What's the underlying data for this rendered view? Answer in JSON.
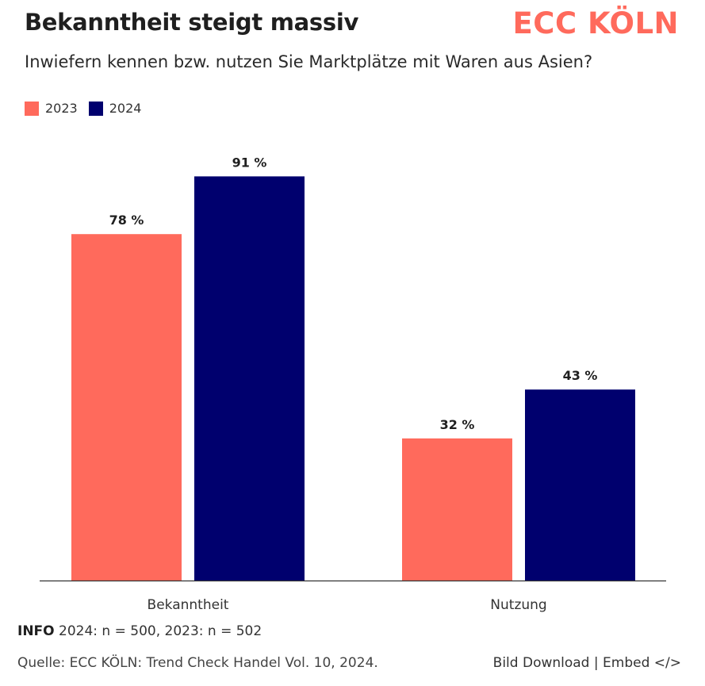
{
  "header": {
    "title": "Bekanntheit steigt massiv",
    "subtitle": "Inwiefern kennen bzw. nutzen Sie Marktplätze mit Waren aus Asien?",
    "logo_text": "ECC KÖLN"
  },
  "colors": {
    "series_2023": "#ff6a5c",
    "series_2024": "#00006e",
    "logo": "#ff6a5c"
  },
  "chart_data": {
    "type": "bar",
    "title": "Bekanntheit steigt massiv",
    "subtitle": "Inwiefern kennen bzw. nutzen Sie Marktplätze mit Waren aus Asien?",
    "categories": [
      "Bekanntheit",
      "Nutzung"
    ],
    "series": [
      {
        "name": "2023",
        "values": [
          78,
          32
        ],
        "labels": [
          "78 %",
          "32 %"
        ],
        "color": "#ff6a5c"
      },
      {
        "name": "2024",
        "values": [
          91,
          43
        ],
        "labels": [
          "91 %",
          "43 %"
        ],
        "color": "#00006e"
      }
    ],
    "xlabel": "",
    "ylabel": "",
    "ylim": [
      0,
      100
    ],
    "grid": false,
    "legend": "top-left"
  },
  "footer": {
    "info_label": "INFO",
    "info_text": " 2024: n = 500, 2023: n = 502",
    "source": "Quelle: ECC KÖLN: Trend Check Handel Vol. 10, 2024.",
    "download_label": "Bild Download",
    "separator": " | ",
    "embed_label": "Embed </>"
  }
}
